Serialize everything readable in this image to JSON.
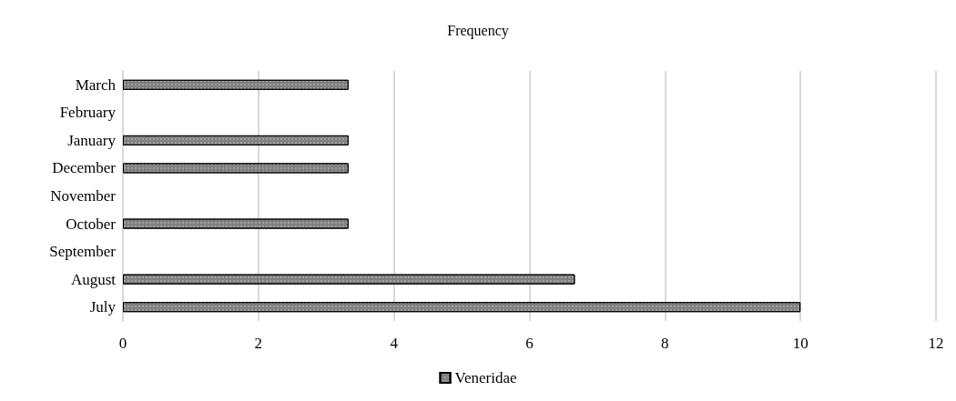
{
  "chart_data": {
    "type": "bar",
    "orientation": "horizontal",
    "title": "Frequency",
    "categories": [
      "March",
      "February",
      "January",
      "December",
      "November",
      "October",
      "September",
      "August",
      "July"
    ],
    "series": [
      {
        "name": "Veneridae",
        "color": "#808080",
        "values": [
          3.33,
          null,
          3.33,
          3.33,
          null,
          3.33,
          null,
          6.67,
          10
        ]
      }
    ],
    "xlim": [
      0,
      12
    ],
    "xticks": [
      0,
      2,
      4,
      6,
      8,
      10,
      12
    ],
    "grid": "x",
    "legend": "bottom"
  }
}
